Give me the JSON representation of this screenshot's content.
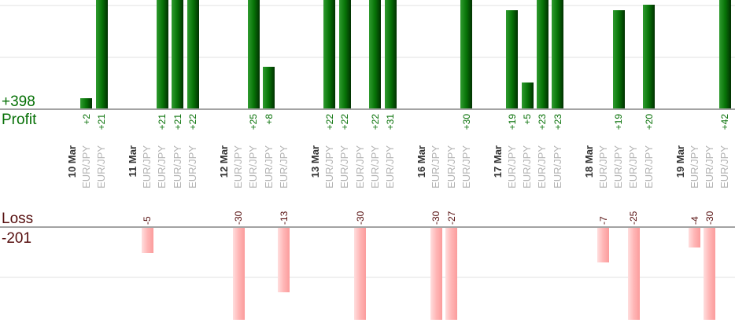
{
  "axis": {
    "profit_total_label": "+398",
    "profit_axis_label": "Profit",
    "loss_axis_label": "Loss",
    "loss_total_label": "-201"
  },
  "chart_data": {
    "type": "bar",
    "title": "",
    "xlabel": "",
    "ylabel_top": "Profit",
    "ylabel_bottom": "Loss",
    "symbol": "EUR/JPY",
    "totals": {
      "profit": 398,
      "loss": -201
    },
    "legend_position": "none",
    "grid": "horizontal, every 10 units",
    "layout_hints": {
      "profit_bars_clipped_at_top_of_image": true,
      "loss_bars_clipped_at_bottom_of_plot": true,
      "bar_value_labels_rotated_90deg": true
    },
    "colors": {
      "profit_bar_gradient": [
        "#2f9b2f",
        "#077407",
        "#013101"
      ],
      "loss_bar_gradient": [
        "#ffdede",
        "#ffb6b6",
        "#fb9c9c"
      ],
      "profit_text": "#067006",
      "loss_text": "#550d0d",
      "date_text": "#333333",
      "symbol_text": "#b3b3b3",
      "axis_line": "#a3a3a3",
      "gridline": "#f0f0f0"
    },
    "groups": [
      {
        "date": "10 Mar",
        "trades": [
          {
            "symbol": "EUR/JPY",
            "value": 2,
            "label": "+2"
          },
          {
            "symbol": "EUR/JPY",
            "value": 21,
            "label": "+21"
          }
        ]
      },
      {
        "date": "11 Mar",
        "trades": [
          {
            "symbol": "EUR/JPY",
            "value": -5,
            "label": "-5"
          },
          {
            "symbol": "EUR/JPY",
            "value": 21,
            "label": "+21"
          },
          {
            "symbol": "EUR/JPY",
            "value": 21,
            "label": "+21"
          },
          {
            "symbol": "EUR/JPY",
            "value": 22,
            "label": "+22"
          }
        ]
      },
      {
        "date": "12 Mar",
        "trades": [
          {
            "symbol": "EUR/JPY",
            "value": -30,
            "label": "-30"
          },
          {
            "symbol": "EUR/JPY",
            "value": 25,
            "label": "+25"
          },
          {
            "symbol": "EUR/JPY",
            "value": 8,
            "label": "+8"
          },
          {
            "symbol": "EUR/JPY",
            "value": -13,
            "label": "-13"
          }
        ]
      },
      {
        "date": "13 Mar",
        "trades": [
          {
            "symbol": "EUR/JPY",
            "value": 22,
            "label": "+22"
          },
          {
            "symbol": "EUR/JPY",
            "value": 22,
            "label": "+22"
          },
          {
            "symbol": "EUR/JPY",
            "value": -30,
            "label": "-30"
          },
          {
            "symbol": "EUR/JPY",
            "value": 22,
            "label": "+22"
          },
          {
            "symbol": "EUR/JPY",
            "value": 31,
            "label": "+31"
          }
        ]
      },
      {
        "date": "16 Mar",
        "trades": [
          {
            "symbol": "EUR/JPY",
            "value": -30,
            "label": "-30"
          },
          {
            "symbol": "EUR/JPY",
            "value": -27,
            "label": "-27"
          },
          {
            "symbol": "EUR/JPY",
            "value": 30,
            "label": "+30"
          }
        ]
      },
      {
        "date": "17 Mar",
        "trades": [
          {
            "symbol": "EUR/JPY",
            "value": 19,
            "label": "+19"
          },
          {
            "symbol": "EUR/JPY",
            "value": 5,
            "label": "+5"
          },
          {
            "symbol": "EUR/JPY",
            "value": 23,
            "label": "+23"
          },
          {
            "symbol": "EUR/JPY",
            "value": 23,
            "label": "+23"
          }
        ]
      },
      {
        "date": "18 Mar",
        "trades": [
          {
            "symbol": "EUR/JPY",
            "value": -7,
            "label": "-7"
          },
          {
            "symbol": "EUR/JPY",
            "value": 19,
            "label": "+19"
          },
          {
            "symbol": "EUR/JPY",
            "value": -25,
            "label": "-25"
          },
          {
            "symbol": "EUR/JPY",
            "value": 20,
            "label": "+20"
          }
        ]
      },
      {
        "date": "19 Mar",
        "trades": [
          {
            "symbol": "EUR/JPY",
            "value": -4,
            "label": "-4"
          },
          {
            "symbol": "EUR/JPY",
            "value": -30,
            "label": "-30"
          },
          {
            "symbol": "EUR/JPY",
            "value": 42,
            "label": "+42"
          }
        ]
      }
    ]
  }
}
